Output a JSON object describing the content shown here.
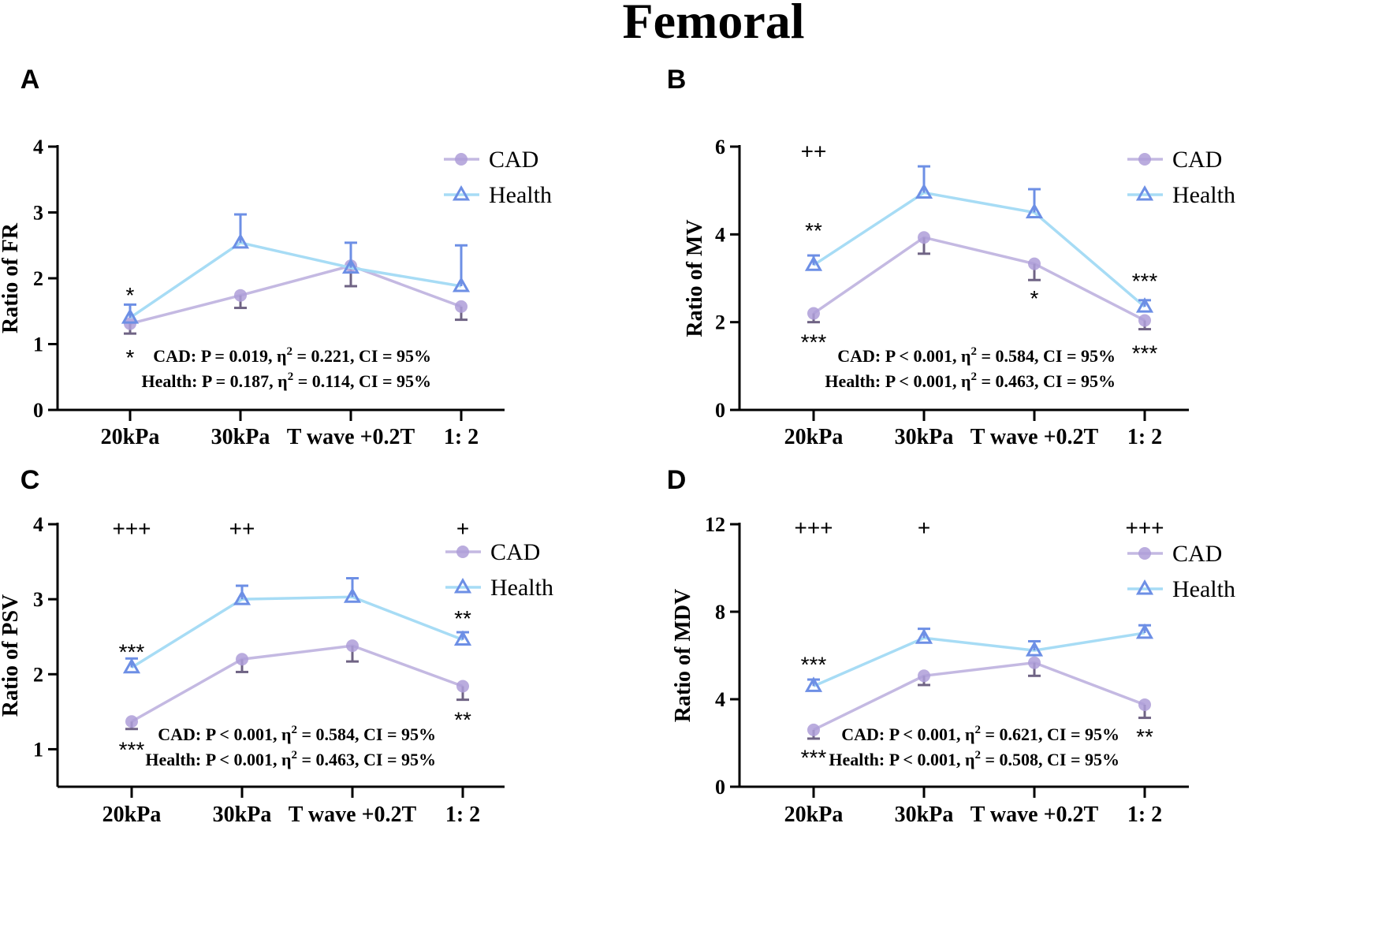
{
  "figure_title": "Femoral",
  "colors": {
    "cad_line": "#c4b9e2",
    "cad_marker": "#ae9ed8",
    "cad_err": "#6f6384",
    "health_line": "#a7dcf5",
    "health_marker": "#6d8fe5"
  },
  "legend": {
    "cad": "CAD",
    "health": "Health"
  },
  "chart_data": [
    {
      "panel": "A",
      "type": "line",
      "ylabel": "Ratio of FR",
      "categories": [
        "20kPa",
        "30kPa",
        "T wave +0.2T",
        "1: 2"
      ],
      "ylim": [
        0,
        4
      ],
      "yticks": [
        "0",
        "1",
        "2",
        "3",
        "4"
      ],
      "legend_position": "top-right",
      "series": [
        {
          "name": "CAD",
          "values": [
            1.31,
            1.74,
            2.19,
            1.57
          ],
          "errors": [
            0.15,
            0.19,
            0.31,
            0.2
          ],
          "error_dir": "down"
        },
        {
          "name": "Health",
          "values": [
            1.4,
            2.54,
            2.16,
            1.88
          ],
          "errors": [
            0.2,
            0.43,
            0.38,
            0.62
          ],
          "error_dir": "up"
        }
      ],
      "annotations": [
        {
          "text": "*",
          "x": 0,
          "y": 1.75
        },
        {
          "text": "*",
          "x": 0,
          "y": 0.8
        }
      ],
      "stats": [
        "CAD: P = 0.019, η2 = 0.221, CI = 95%",
        "Health: P = 0.187, η2 = 0.114, CI = 95%"
      ]
    },
    {
      "panel": "B",
      "type": "line",
      "ylabel": "Ratio of MV",
      "categories": [
        "20kPa",
        "30kPa",
        "T wave +0.2T",
        "1: 2"
      ],
      "ylim": [
        0,
        6
      ],
      "yticks": [
        "0",
        "2",
        "4",
        "6"
      ],
      "legend_position": "top-right",
      "series": [
        {
          "name": "CAD",
          "values": [
            2.2,
            3.93,
            3.33,
            2.04
          ],
          "errors": [
            0.2,
            0.37,
            0.37,
            0.2
          ],
          "error_dir": "down"
        },
        {
          "name": "Health",
          "values": [
            3.3,
            4.95,
            4.5,
            2.35
          ],
          "errors": [
            0.22,
            0.6,
            0.53,
            0.15
          ],
          "error_dir": "up"
        }
      ],
      "annotations": [
        {
          "text": "++",
          "x": 0,
          "y": 5.9
        },
        {
          "text": "**",
          "x": 0,
          "y": 4.1
        },
        {
          "text": "***",
          "x": 0,
          "y": 1.55
        },
        {
          "text": "*",
          "x": 2,
          "y": 2.55
        },
        {
          "text": "***",
          "x": 3,
          "y": 2.95
        },
        {
          "text": "***",
          "x": 3,
          "y": 1.3
        }
      ],
      "stats": [
        "CAD: P < 0.001, η2 = 0.584, CI = 95%",
        "Health: P < 0.001, η2 = 0.463, CI = 95%"
      ]
    },
    {
      "panel": "C",
      "type": "line",
      "ylabel": "Ratio of PSV",
      "categories": [
        "20kPa",
        "30kPa",
        "T wave +0.2T",
        "1: 2"
      ],
      "ylim": [
        0.5,
        4
      ],
      "yticks": [
        "1",
        "2",
        "3",
        "4"
      ],
      "legend_position": "top-right",
      "series": [
        {
          "name": "CAD",
          "values": [
            1.37,
            2.2,
            2.38,
            1.84
          ],
          "errors": [
            0.1,
            0.17,
            0.21,
            0.18
          ],
          "error_dir": "down"
        },
        {
          "name": "Health",
          "values": [
            2.09,
            3.0,
            3.03,
            2.46
          ],
          "errors": [
            0.12,
            0.18,
            0.25,
            0.1
          ],
          "error_dir": "up"
        }
      ],
      "annotations": [
        {
          "text": "+++",
          "x": 0,
          "y": 3.95
        },
        {
          "text": "++",
          "x": 1,
          "y": 3.95
        },
        {
          "text": "+",
          "x": 3,
          "y": 3.95
        },
        {
          "text": "***",
          "x": 0,
          "y": 2.3
        },
        {
          "text": "***",
          "x": 0,
          "y": 1.0
        },
        {
          "text": "**",
          "x": 3,
          "y": 2.75
        },
        {
          "text": "**",
          "x": 3,
          "y": 1.4
        }
      ],
      "stats": [
        "CAD: P < 0.001, η2 = 0.584, CI = 95%",
        "Health: P < 0.001, η2 = 0.463, CI = 95%"
      ]
    },
    {
      "panel": "D",
      "type": "line",
      "ylabel": "Ratio of MDV",
      "categories": [
        "20kPa",
        "30kPa",
        "T wave +0.2T",
        "1: 2"
      ],
      "ylim": [
        0,
        12
      ],
      "yticks": [
        "0",
        "4",
        "8",
        "12"
      ],
      "legend_position": "top-right",
      "series": [
        {
          "name": "CAD",
          "values": [
            2.6,
            5.07,
            5.67,
            3.75
          ],
          "errors": [
            0.4,
            0.42,
            0.6,
            0.6
          ],
          "error_dir": "down"
        },
        {
          "name": "Health",
          "values": [
            4.6,
            6.8,
            6.23,
            7.03
          ],
          "errors": [
            0.3,
            0.42,
            0.42,
            0.35
          ],
          "error_dir": "up"
        }
      ],
      "annotations": [
        {
          "text": "+++",
          "x": 0,
          "y": 11.85
        },
        {
          "text": "+",
          "x": 1,
          "y": 11.85
        },
        {
          "text": "+++",
          "x": 3,
          "y": 11.85
        },
        {
          "text": "***",
          "x": 0,
          "y": 5.6
        },
        {
          "text": "***",
          "x": 0,
          "y": 1.35
        },
        {
          "text": "**",
          "x": 3,
          "y": 2.3
        }
      ],
      "stats": [
        "CAD: P < 0.001, η2 = 0.621, CI = 95%",
        "Health: P < 0.001, η2 = 0.508, CI = 95%"
      ]
    }
  ]
}
